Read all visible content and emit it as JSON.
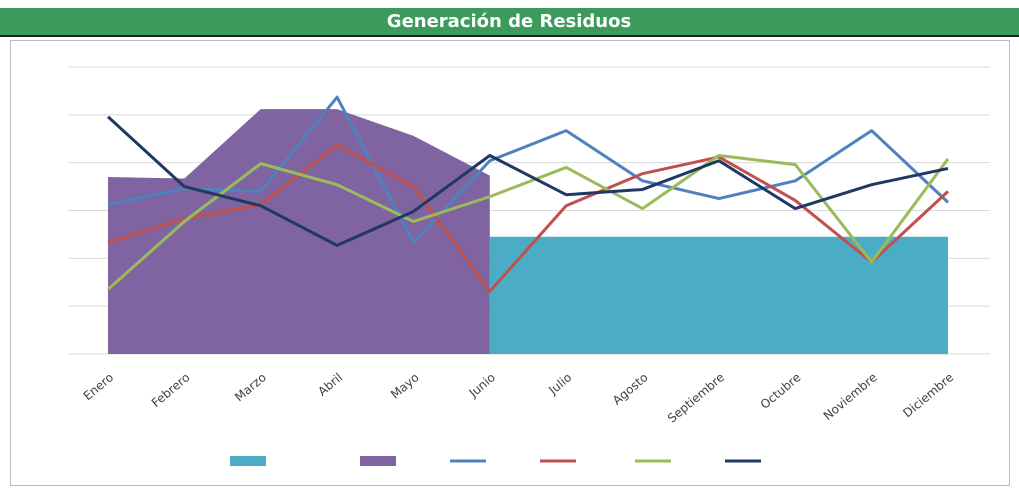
{
  "chart_data": {
    "type": "combo",
    "title": "Generación de Residuos",
    "categories": [
      "Enero",
      "Febrero",
      "Marzo",
      "Abril",
      "Mayo",
      "Junio",
      "Julio",
      "Agosto",
      "Septiembre",
      "Octubre",
      "Noviembre",
      "Diciembre"
    ],
    "ylim": [
      0,
      6
    ],
    "yticks": [
      0,
      1,
      2,
      3,
      4,
      5,
      6
    ],
    "grid": true,
    "series": [
      {
        "type": "area",
        "color": "#4bacc6",
        "values": [
          null,
          null,
          null,
          null,
          null,
          2.45,
          2.45,
          2.45,
          2.45,
          2.45,
          2.45,
          2.45
        ]
      },
      {
        "type": "area",
        "color": "#8064a2",
        "values": [
          3.7,
          3.67,
          5.12,
          5.12,
          4.56,
          3.73,
          null,
          null,
          null,
          null,
          null,
          null
        ]
      },
      {
        "type": "line",
        "color": "#4f81bd",
        "values": [
          3.12,
          3.46,
          3.4,
          5.37,
          2.33,
          4.04,
          4.67,
          3.62,
          3.25,
          3.62,
          4.67,
          3.17
        ]
      },
      {
        "type": "line",
        "color": "#c0504d",
        "values": [
          2.33,
          2.83,
          3.12,
          4.37,
          3.5,
          1.31,
          3.1,
          3.77,
          4.12,
          3.21,
          1.92,
          3.4
        ]
      },
      {
        "type": "line",
        "color": "#9bbb59",
        "values": [
          1.35,
          2.77,
          3.98,
          3.54,
          2.77,
          3.29,
          3.9,
          3.04,
          4.15,
          3.96,
          1.92,
          4.08
        ]
      },
      {
        "type": "line",
        "color": "#1f3864",
        "values": [
          4.96,
          3.5,
          3.1,
          2.27,
          2.98,
          4.15,
          3.33,
          3.44,
          4.04,
          3.04,
          3.54,
          3.88
        ]
      }
    ]
  }
}
